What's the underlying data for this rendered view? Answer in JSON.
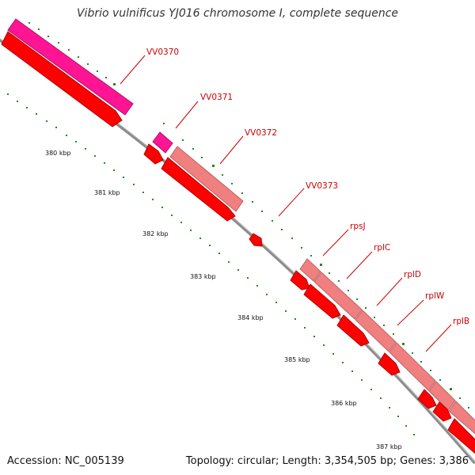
{
  "title": "Vibrio vulnificus YJ016 chromosome I, complete sequence",
  "footer": {
    "accession": "Accession: NC_005139",
    "summary": "Topology: circular; Length: 3,354,505 bp; Genes: 3,386"
  },
  "ticks": [
    "380 kbp",
    "381 kbp",
    "382 kbp",
    "383 kbp",
    "384 kbp",
    "385 kbp",
    "386 kbp",
    "387 kbp"
  ],
  "genes": [
    "VV0370",
    "VV0371",
    "VV0372",
    "VV0373",
    "rpsJ",
    "rplC",
    "rplD",
    "rplW",
    "rplB"
  ],
  "colors": {
    "backbone": "#8c8c8c",
    "cds": "#ff0000",
    "gene_magenta": "#ff1493",
    "gene_salmon": "#f08080",
    "tick": "#006400",
    "label": "#cc0000"
  }
}
